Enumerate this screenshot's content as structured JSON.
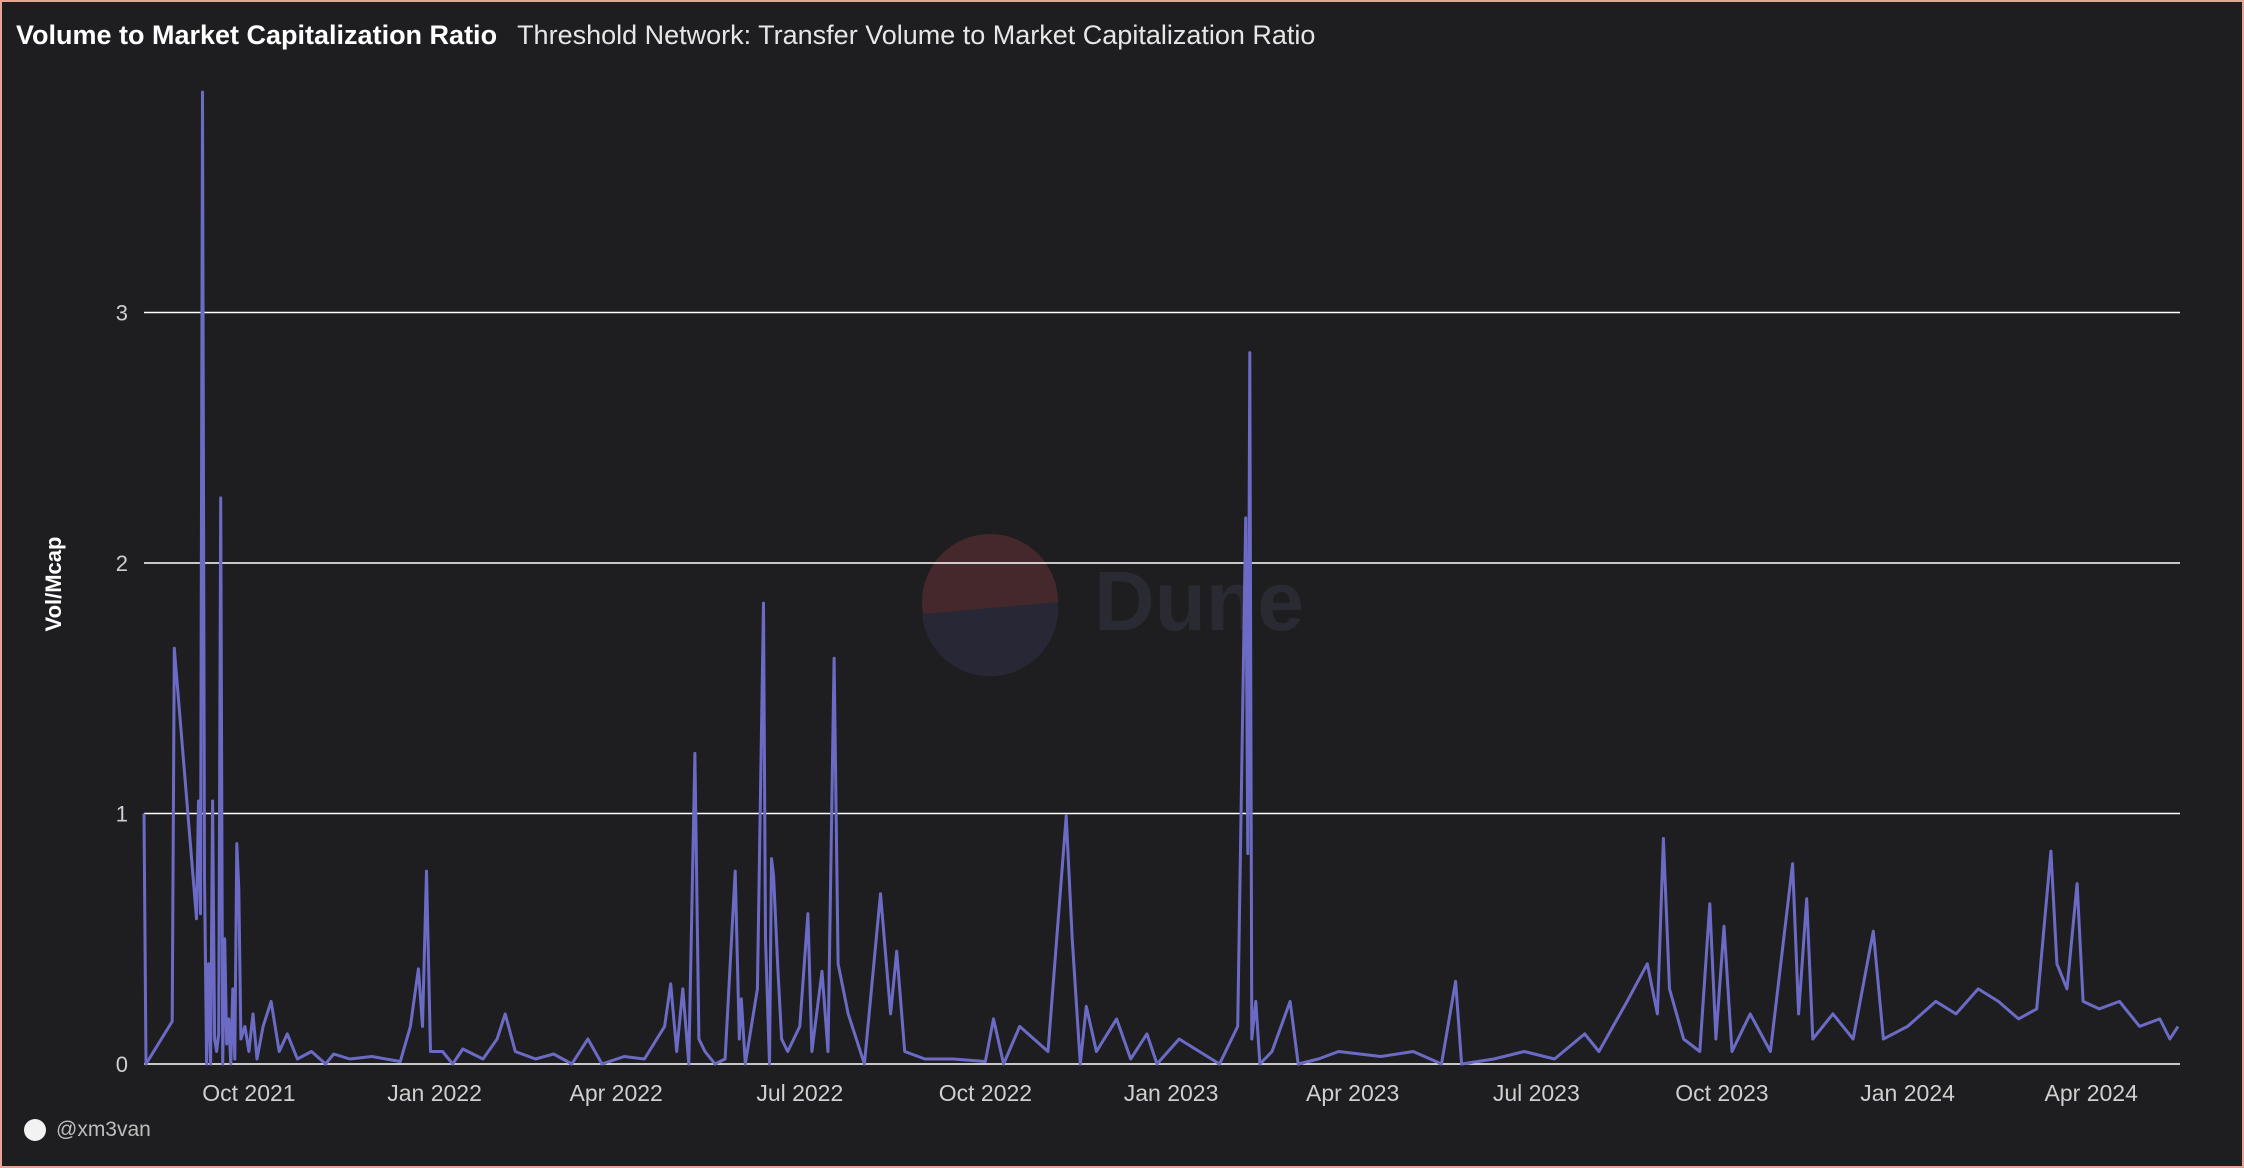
{
  "header": {
    "title": "Volume to Market Capitalization Ratio",
    "subtitle": "Threshold Network: Transfer Volume to Market Capitalization Ratio"
  },
  "footer": {
    "user": "@xm3van",
    "avatar_icon": "user-avatar-icon"
  },
  "watermark": {
    "text": "Dune",
    "logo_icon": "dune-logo-icon"
  },
  "colors": {
    "background": "#1e1e20",
    "line": "#6b6bc6",
    "grid": "#ffffff",
    "border": "#e8a593"
  },
  "chart_data": {
    "type": "line",
    "title": "Threshold Network: Transfer Volume to Market Capitalization Ratio",
    "xlabel": "",
    "ylabel": "Vol/Mcap",
    "grid": true,
    "xlim": [
      "2021-08-10",
      "2024-05-15"
    ],
    "ylim": [
      0,
      4
    ],
    "y_ticks": [
      0,
      1,
      2,
      3
    ],
    "x_ticks": [
      {
        "date": "2021-10-01",
        "label": "Oct 2021"
      },
      {
        "date": "2022-01-01",
        "label": "Jan 2022"
      },
      {
        "date": "2022-04-01",
        "label": "Apr 2022"
      },
      {
        "date": "2022-07-01",
        "label": "Jul 2022"
      },
      {
        "date": "2022-10-01",
        "label": "Oct 2022"
      },
      {
        "date": "2023-01-01",
        "label": "Jan 2023"
      },
      {
        "date": "2023-04-01",
        "label": "Apr 2023"
      },
      {
        "date": "2023-07-01",
        "label": "Jul 2023"
      },
      {
        "date": "2023-10-01",
        "label": "Oct 2023"
      },
      {
        "date": "2024-01-01",
        "label": "Jan 2024"
      },
      {
        "date": "2024-04-01",
        "label": "Apr 2024"
      }
    ],
    "series": [
      {
        "values": [
          [
            "2021-08-10",
            1.0
          ],
          [
            "2021-08-11",
            0.0
          ],
          [
            "2021-08-24",
            0.17
          ],
          [
            "2021-08-25",
            1.66
          ],
          [
            "2021-09-05",
            0.58
          ],
          [
            "2021-09-06",
            1.05
          ],
          [
            "2021-09-07",
            0.6
          ],
          [
            "2021-09-08",
            3.88
          ],
          [
            "2021-09-09",
            0.75
          ],
          [
            "2021-09-10",
            0.0
          ],
          [
            "2021-09-11",
            0.4
          ],
          [
            "2021-09-12",
            0.0
          ],
          [
            "2021-09-13",
            1.05
          ],
          [
            "2021-09-14",
            0.1
          ],
          [
            "2021-09-15",
            0.05
          ],
          [
            "2021-09-16",
            0.12
          ],
          [
            "2021-09-17",
            2.26
          ],
          [
            "2021-09-18",
            0.0
          ],
          [
            "2021-09-19",
            0.5
          ],
          [
            "2021-09-20",
            0.08
          ],
          [
            "2021-09-21",
            0.18
          ],
          [
            "2021-09-22",
            0.0
          ],
          [
            "2021-09-23",
            0.3
          ],
          [
            "2021-09-24",
            0.02
          ],
          [
            "2021-09-25",
            0.88
          ],
          [
            "2021-09-26",
            0.7
          ],
          [
            "2021-09-27",
            0.1
          ],
          [
            "2021-09-29",
            0.15
          ],
          [
            "2021-10-01",
            0.05
          ],
          [
            "2021-10-03",
            0.2
          ],
          [
            "2021-10-05",
            0.02
          ],
          [
            "2021-10-08",
            0.15
          ],
          [
            "2021-10-12",
            0.25
          ],
          [
            "2021-10-16",
            0.05
          ],
          [
            "2021-10-20",
            0.12
          ],
          [
            "2021-10-25",
            0.02
          ],
          [
            "2021-11-01",
            0.05
          ],
          [
            "2021-11-08",
            0.0
          ],
          [
            "2021-11-12",
            0.04
          ],
          [
            "2021-11-20",
            0.02
          ],
          [
            "2021-12-01",
            0.03
          ],
          [
            "2021-12-15",
            0.01
          ],
          [
            "2021-12-20",
            0.15
          ],
          [
            "2021-12-24",
            0.38
          ],
          [
            "2021-12-26",
            0.15
          ],
          [
            "2021-12-28",
            0.77
          ],
          [
            "2021-12-30",
            0.05
          ],
          [
            "2022-01-05",
            0.05
          ],
          [
            "2022-01-10",
            0.0
          ],
          [
            "2022-01-15",
            0.06
          ],
          [
            "2022-01-25",
            0.02
          ],
          [
            "2022-02-01",
            0.1
          ],
          [
            "2022-02-05",
            0.2
          ],
          [
            "2022-02-10",
            0.05
          ],
          [
            "2022-02-20",
            0.02
          ],
          [
            "2022-03-01",
            0.04
          ],
          [
            "2022-03-10",
            0.0
          ],
          [
            "2022-03-18",
            0.1
          ],
          [
            "2022-03-25",
            0.0
          ],
          [
            "2022-04-05",
            0.03
          ],
          [
            "2022-04-15",
            0.02
          ],
          [
            "2022-04-25",
            0.15
          ],
          [
            "2022-04-28",
            0.32
          ],
          [
            "2022-05-01",
            0.05
          ],
          [
            "2022-05-04",
            0.3
          ],
          [
            "2022-05-07",
            0.0
          ],
          [
            "2022-05-10",
            1.24
          ],
          [
            "2022-05-12",
            0.1
          ],
          [
            "2022-05-15",
            0.05
          ],
          [
            "2022-05-20",
            0.0
          ],
          [
            "2022-05-25",
            0.02
          ],
          [
            "2022-05-30",
            0.77
          ],
          [
            "2022-06-01",
            0.1
          ],
          [
            "2022-06-02",
            0.26
          ],
          [
            "2022-06-04",
            0.0
          ],
          [
            "2022-06-10",
            0.3
          ],
          [
            "2022-06-13",
            1.84
          ],
          [
            "2022-06-14",
            0.5
          ],
          [
            "2022-06-16",
            0.0
          ],
          [
            "2022-06-17",
            0.82
          ],
          [
            "2022-06-18",
            0.75
          ],
          [
            "2022-06-20",
            0.4
          ],
          [
            "2022-06-22",
            0.1
          ],
          [
            "2022-06-25",
            0.05
          ],
          [
            "2022-07-01",
            0.15
          ],
          [
            "2022-07-05",
            0.6
          ],
          [
            "2022-07-07",
            0.05
          ],
          [
            "2022-07-12",
            0.37
          ],
          [
            "2022-07-15",
            0.05
          ],
          [
            "2022-07-18",
            1.62
          ],
          [
            "2022-07-20",
            0.4
          ],
          [
            "2022-07-25",
            0.2
          ],
          [
            "2022-08-02",
            0.0
          ],
          [
            "2022-08-10",
            0.68
          ],
          [
            "2022-08-15",
            0.2
          ],
          [
            "2022-08-18",
            0.45
          ],
          [
            "2022-08-22",
            0.05
          ],
          [
            "2022-09-01",
            0.02
          ],
          [
            "2022-09-15",
            0.02
          ],
          [
            "2022-10-01",
            0.01
          ],
          [
            "2022-10-05",
            0.18
          ],
          [
            "2022-10-10",
            0.0
          ],
          [
            "2022-10-18",
            0.15
          ],
          [
            "2022-11-01",
            0.05
          ],
          [
            "2022-11-10",
            0.99
          ],
          [
            "2022-11-13",
            0.5
          ],
          [
            "2022-11-17",
            0.0
          ],
          [
            "2022-11-20",
            0.23
          ],
          [
            "2022-11-25",
            0.05
          ],
          [
            "2022-12-05",
            0.18
          ],
          [
            "2022-12-12",
            0.02
          ],
          [
            "2022-12-20",
            0.12
          ],
          [
            "2022-12-25",
            0.0
          ],
          [
            "2023-01-05",
            0.1
          ],
          [
            "2023-01-15",
            0.05
          ],
          [
            "2023-01-25",
            0.0
          ],
          [
            "2023-02-03",
            0.15
          ],
          [
            "2023-02-07",
            2.18
          ],
          [
            "2023-02-08",
            0.84
          ],
          [
            "2023-02-09",
            2.84
          ],
          [
            "2023-02-10",
            0.1
          ],
          [
            "2023-02-12",
            0.25
          ],
          [
            "2023-02-14",
            0.0
          ],
          [
            "2023-02-20",
            0.05
          ],
          [
            "2023-03-01",
            0.25
          ],
          [
            "2023-03-05",
            0.0
          ],
          [
            "2023-03-15",
            0.02
          ],
          [
            "2023-03-25",
            0.05
          ],
          [
            "2023-04-15",
            0.03
          ],
          [
            "2023-05-01",
            0.05
          ],
          [
            "2023-05-15",
            0.0
          ],
          [
            "2023-05-22",
            0.33
          ],
          [
            "2023-05-25",
            0.0
          ],
          [
            "2023-06-10",
            0.02
          ],
          [
            "2023-06-25",
            0.05
          ],
          [
            "2023-07-10",
            0.02
          ],
          [
            "2023-07-25",
            0.12
          ],
          [
            "2023-08-01",
            0.05
          ],
          [
            "2023-08-15",
            0.25
          ],
          [
            "2023-08-25",
            0.4
          ],
          [
            "2023-08-30",
            0.2
          ],
          [
            "2023-09-02",
            0.9
          ],
          [
            "2023-09-05",
            0.3
          ],
          [
            "2023-09-12",
            0.1
          ],
          [
            "2023-09-20",
            0.05
          ],
          [
            "2023-09-25",
            0.64
          ],
          [
            "2023-09-28",
            0.1
          ],
          [
            "2023-10-02",
            0.55
          ],
          [
            "2023-10-06",
            0.05
          ],
          [
            "2023-10-15",
            0.2
          ],
          [
            "2023-10-25",
            0.05
          ],
          [
            "2023-11-05",
            0.8
          ],
          [
            "2023-11-08",
            0.2
          ],
          [
            "2023-11-12",
            0.66
          ],
          [
            "2023-11-15",
            0.1
          ],
          [
            "2023-11-25",
            0.2
          ],
          [
            "2023-12-05",
            0.1
          ],
          [
            "2023-12-15",
            0.53
          ],
          [
            "2023-12-20",
            0.1
          ],
          [
            "2024-01-01",
            0.15
          ],
          [
            "2024-01-15",
            0.25
          ],
          [
            "2024-01-25",
            0.2
          ],
          [
            "2024-02-05",
            0.3
          ],
          [
            "2024-02-15",
            0.25
          ],
          [
            "2024-02-25",
            0.18
          ],
          [
            "2024-03-05",
            0.22
          ],
          [
            "2024-03-12",
            0.85
          ],
          [
            "2024-03-15",
            0.4
          ],
          [
            "2024-03-20",
            0.3
          ],
          [
            "2024-03-25",
            0.72
          ],
          [
            "2024-03-28",
            0.25
          ],
          [
            "2024-04-05",
            0.22
          ],
          [
            "2024-04-15",
            0.25
          ],
          [
            "2024-04-25",
            0.15
          ],
          [
            "2024-05-05",
            0.18
          ],
          [
            "2024-05-10",
            0.1
          ],
          [
            "2024-05-14",
            0.15
          ]
        ]
      }
    ]
  }
}
